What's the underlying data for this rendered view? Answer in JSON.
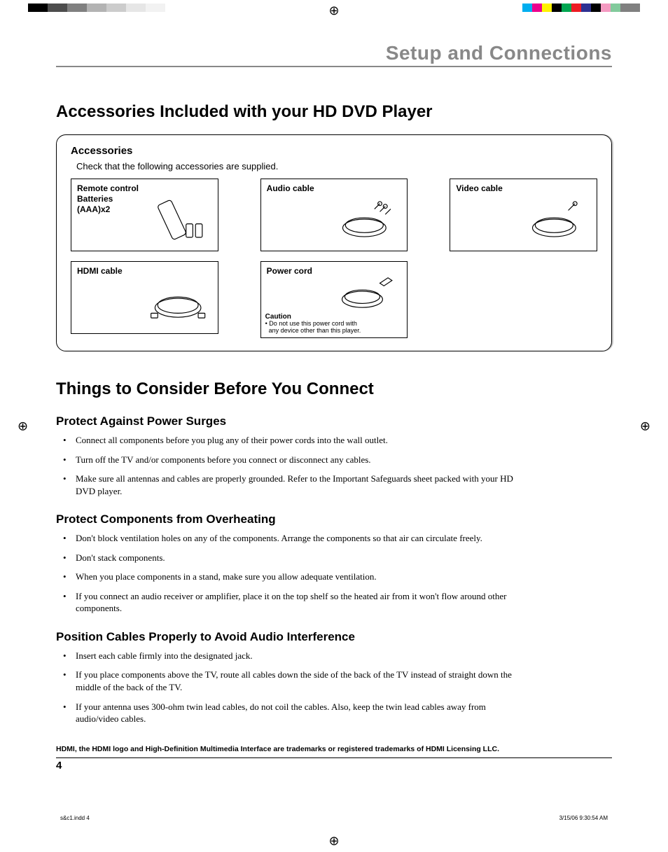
{
  "print": {
    "colorbar_left": [
      "#000000",
      "#000000",
      "#4d4d4d",
      "#4d4d4d",
      "#808080",
      "#808080",
      "#b3b3b3",
      "#b3b3b3",
      "#cccccc",
      "#cccccc",
      "#e6e6e6",
      "#e6e6e6",
      "#f2f2f2",
      "#f2f2f2",
      "#ffffff",
      "#ffffff"
    ],
    "colorbar_right": [
      "#00aeef",
      "#ec008c",
      "#fff200",
      "#000000",
      "#00a651",
      "#ed1c24",
      "#2e3192",
      "#000000",
      "#f49ac1",
      "#82ca9c",
      "#808080",
      "#808080"
    ]
  },
  "chapter": "Setup and Connections",
  "heading1": "Accessories Included with your HD DVD Player",
  "accessories": {
    "title": "Accessories",
    "subtitle": "Check that the following accessories are supplied.",
    "items": [
      {
        "label": "Remote control\nBatteries\n(AAA)x2"
      },
      {
        "label": "Audio cable"
      },
      {
        "label": "Video cable"
      },
      {
        "label": "HDMI cable"
      },
      {
        "label": "Power cord",
        "caution_title": "Caution",
        "caution_text": "• Do not use this power cord with\n  any device other than this player."
      }
    ]
  },
  "heading2": "Things to Consider Before You Connect",
  "sections": [
    {
      "title": "Protect Against Power Surges",
      "bullets": [
        "Connect all components before you plug any of their power cords into the wall outlet.",
        "Turn off the TV and/or components before you connect or disconnect any cables.",
        "Make sure all antennas and cables are properly grounded. Refer to the Important Safeguards sheet packed with your HD DVD player."
      ]
    },
    {
      "title": "Protect Components from Overheating",
      "bullets": [
        "Don't block ventilation holes on any of the components. Arrange the components so that air can circulate freely.",
        "Don't stack components.",
        "When you place components in a stand, make sure you allow adequate ventilation.",
        "If you connect an audio receiver or amplifier, place it on the top shelf so the heated air from it won't flow around other components."
      ]
    },
    {
      "title": "Position Cables Properly to Avoid Audio Interference",
      "bullets": [
        "Insert each cable firmly into the designated jack.",
        "If you place components above the TV, route all cables down the side of the back of the TV instead of straight down the middle of the back of the TV.",
        "If your antenna uses 300-ohm twin lead cables, do not coil the cables. Also, keep the twin lead cables away from audio/video cables."
      ]
    }
  ],
  "trademark": "HDMI, the HDMI logo and High-Definition Multimedia Interface are trademarks or registered trademarks of HDMI Licensing LLC.",
  "page_number": "4",
  "footer_left": "s&c1.indd   4",
  "footer_right": "3/15/06   9:30:54 AM"
}
